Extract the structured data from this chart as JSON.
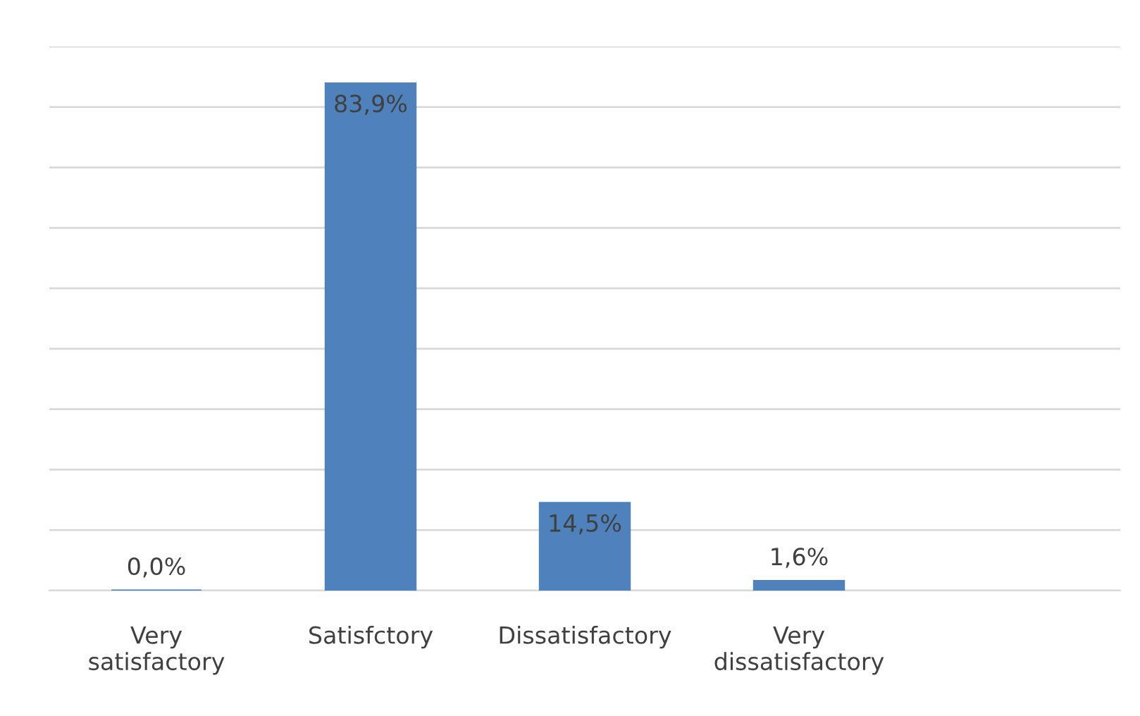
{
  "chart_data": {
    "type": "bar",
    "categories": [
      "Very\nsatisfactory",
      "Satisfctory",
      "Dissatisfactory",
      "Very\ndissatisfactory",
      null
    ],
    "values": [
      0.0,
      83.9,
      14.5,
      1.6,
      null
    ],
    "value_labels": [
      "0,0%",
      "83,9%",
      "14,5%",
      "1,6%",
      null
    ],
    "color": "#4f81bd",
    "ylim": [
      0,
      90
    ],
    "yticks": [
      {
        "value": 0,
        "label": null
      },
      {
        "value": 10,
        "label": null
      },
      {
        "value": 20,
        "label": null
      },
      {
        "value": 30,
        "label": null
      },
      {
        "value": 40,
        "label": null
      },
      {
        "value": 50,
        "label": null
      },
      {
        "value": 60,
        "label": null
      },
      {
        "value": 70,
        "label": null
      },
      {
        "value": 80,
        "label": null
      },
      {
        "value": 90,
        "label": null
      }
    ],
    "grid": "y",
    "tick_labels": "x"
  }
}
